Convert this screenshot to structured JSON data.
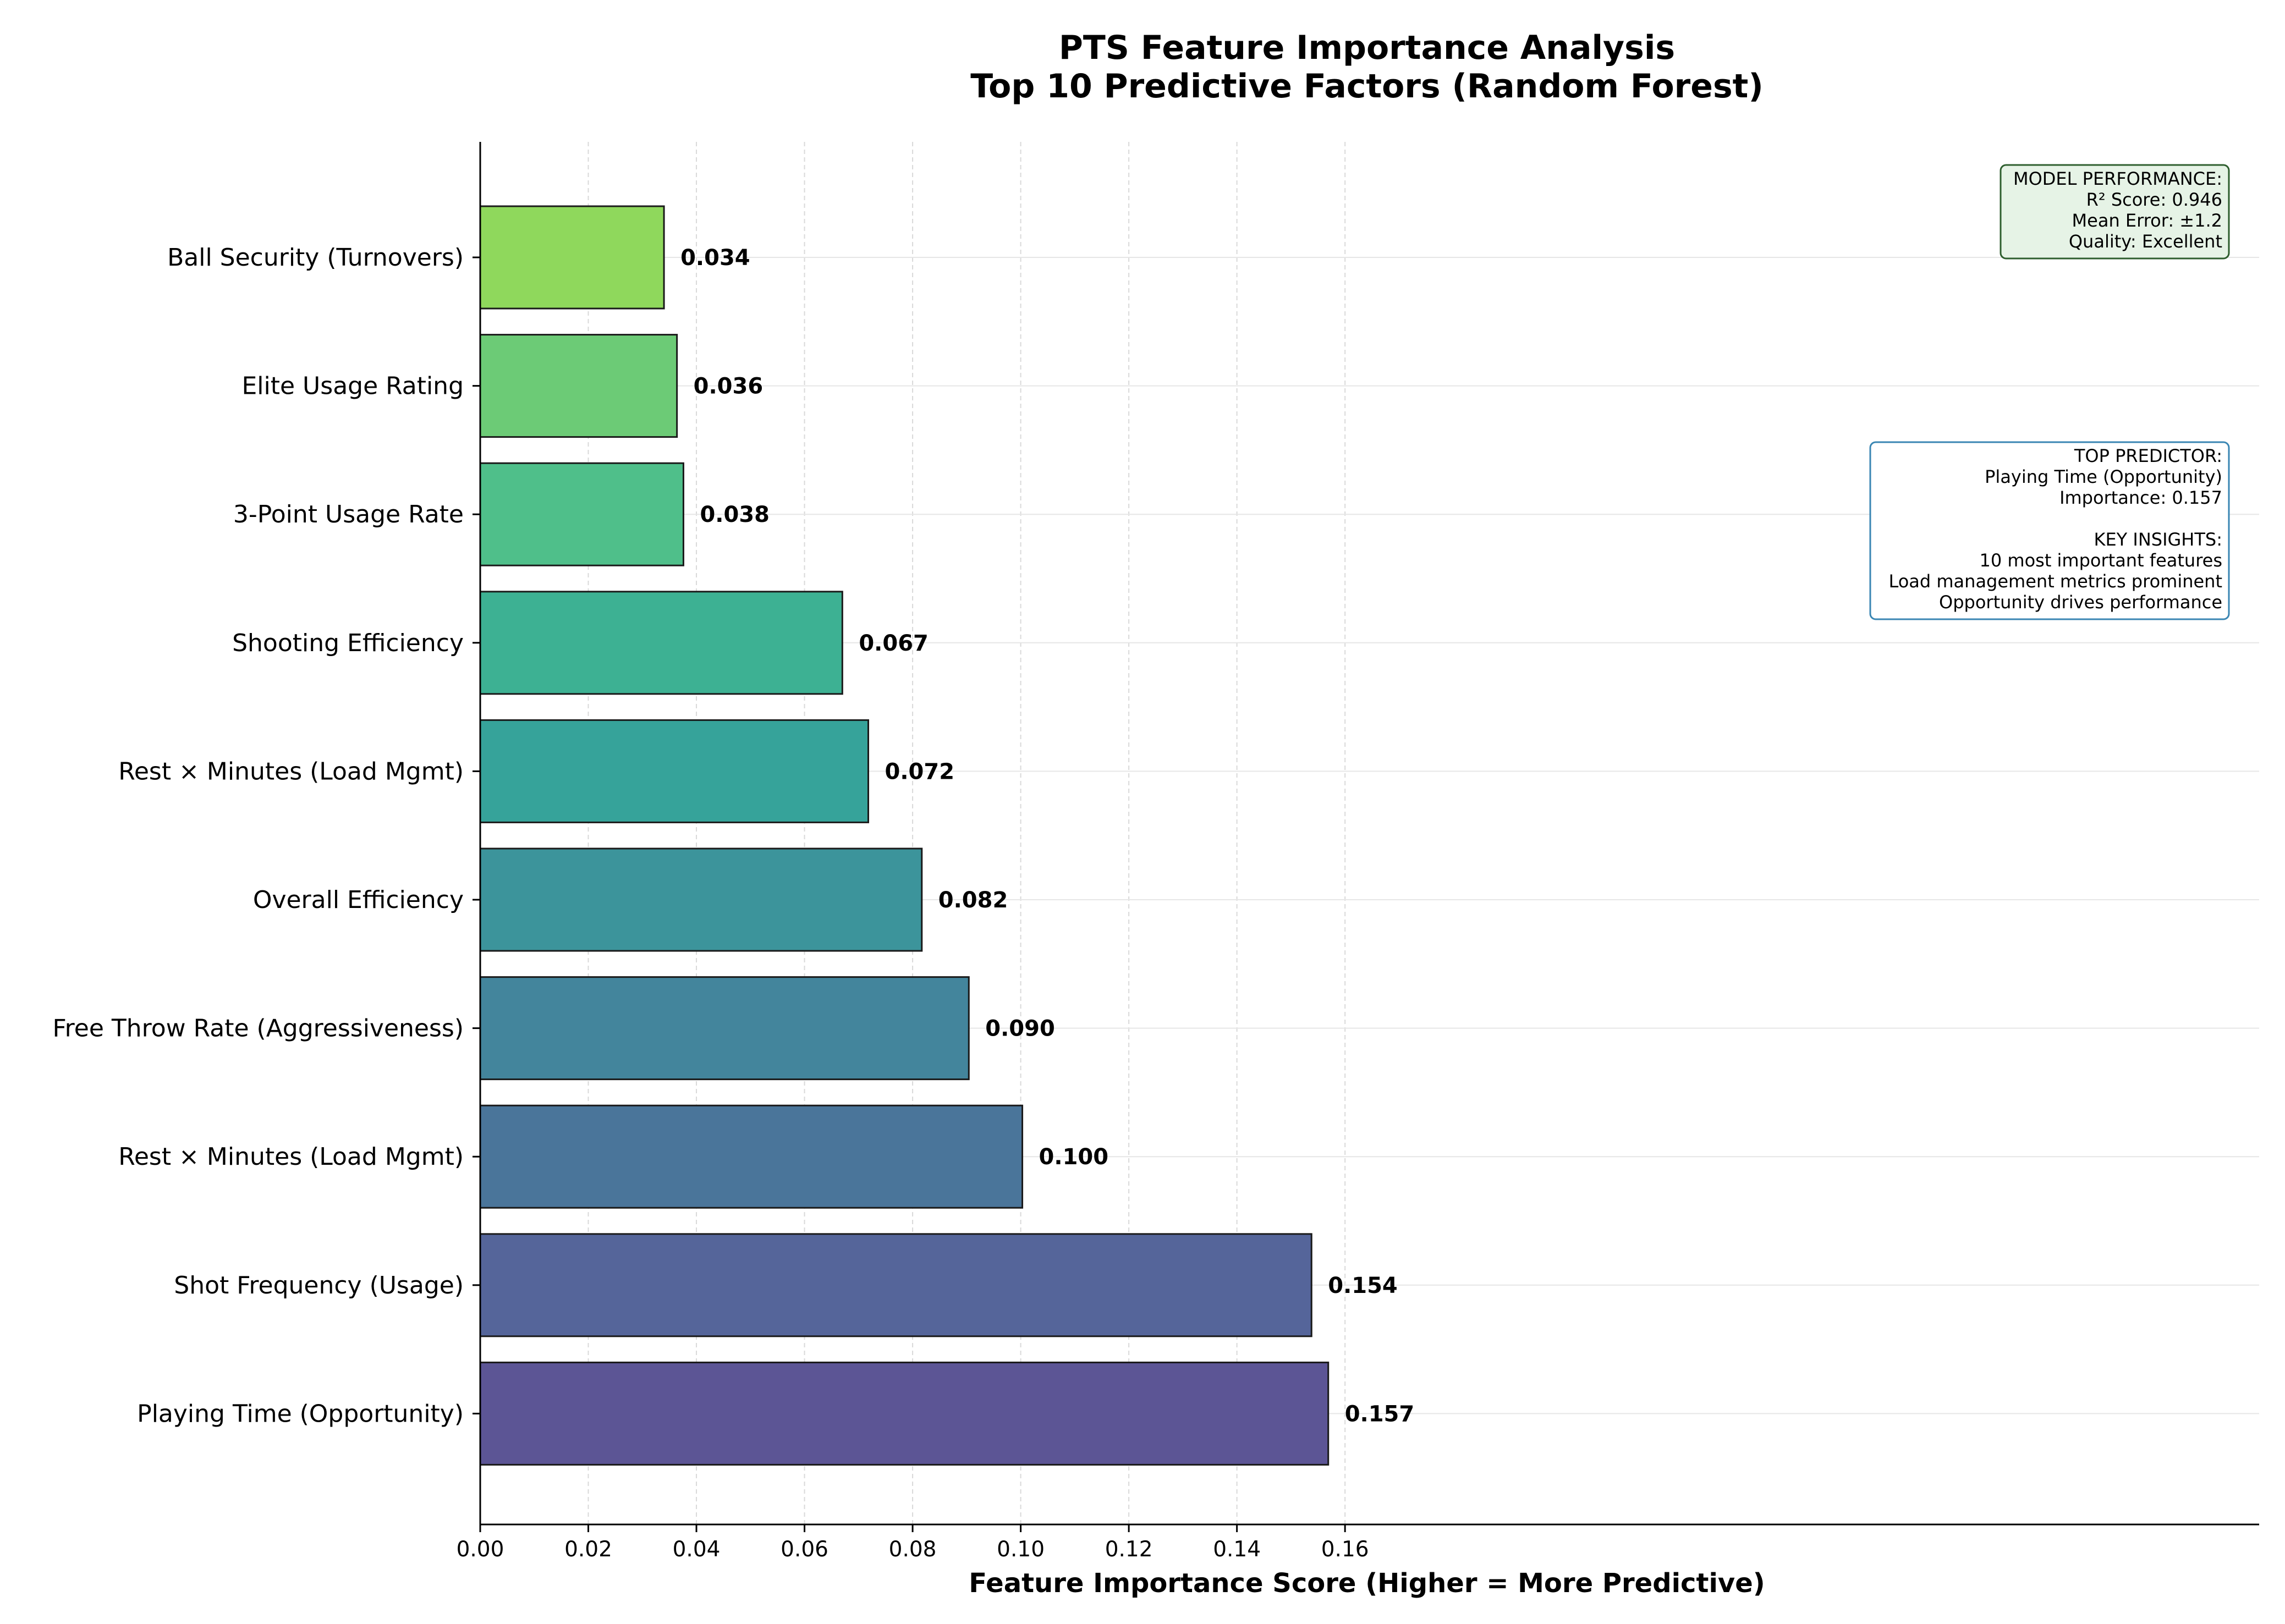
{
  "chart_data": {
    "type": "bar",
    "orientation": "horizontal",
    "title": [
      "PTS Feature Importance Analysis",
      "Top 10 Predictive Factors (Random Forest)"
    ],
    "xlabel": "Feature Importance Score (Higher = More Predictive)",
    "ylabel": "",
    "xlim": [
      0,
      0.165
    ],
    "x_ticks": [
      "0.00",
      "0.02",
      "0.04",
      "0.06",
      "0.08",
      "0.10",
      "0.12",
      "0.14",
      "0.16"
    ],
    "grid": true,
    "categories": [
      "Ball Security (Turnovers)",
      "Elite Usage Rating",
      "3-Point Usage Rate",
      "Shooting Efficiency",
      "Rest × Minutes (Load Mgmt)",
      "Overall Efficiency",
      "Free Throw Rate (Aggressiveness)",
      "Rest × Minutes (Load Mgmt)",
      "Shot Frequency (Usage)",
      "Playing Time (Opportunity)"
    ],
    "values": [
      0.034,
      0.0364,
      0.0376,
      0.067,
      0.0718,
      0.0817,
      0.0904,
      0.1003,
      0.1538,
      0.1569
    ],
    "value_labels": [
      "0.034",
      "0.036",
      "0.038",
      "0.067",
      "0.072",
      "0.082",
      "0.090",
      "0.100",
      "0.154",
      "0.157"
    ],
    "colors": [
      "#8fd85c",
      "#6ccb76",
      "#4fbf8a",
      "#3db193",
      "#36a39a",
      "#3c949b",
      "#43859c",
      "#4a759a",
      "#55659a",
      "#5c5595"
    ],
    "annotations": {
      "model_performance": [
        "MODEL PERFORMANCE:",
        "R² Score: 0.946",
        "Mean Error: ±1.2",
        "Quality: Excellent"
      ],
      "insights": [
        "TOP PREDICTOR:",
        "Playing Time (Opportunity)",
        "Importance: 0.157",
        "",
        "KEY INSIGHTS:",
        "10 most important features",
        "Load management metrics prominent",
        "Opportunity drives performance"
      ]
    },
    "styles": {
      "model_box_fill": "#e6f3e6",
      "model_box_border": "#2e5e2e",
      "insight_box_fill": "#ffffff",
      "insight_box_border": "#3a86b3",
      "bar_edge": "#1a1a1a"
    }
  }
}
